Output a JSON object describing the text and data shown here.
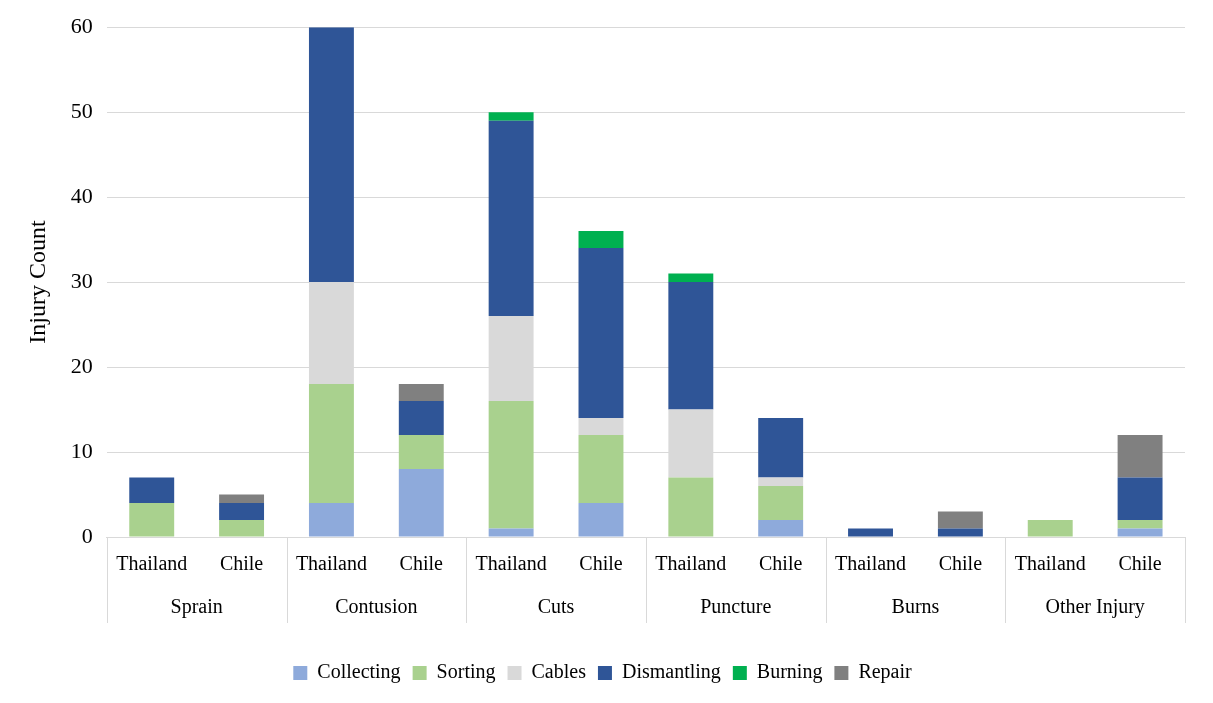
{
  "chart_data": {
    "type": "bar",
    "stacked": true,
    "ylabel": "Injury Count",
    "categories": [
      "Thailand",
      "Chile",
      "Thailand",
      "Chile",
      "Thailand",
      "Chile",
      "Thailand",
      "Chile",
      "Thailand",
      "Chile",
      "Thailand",
      "Chile"
    ],
    "annotations": [
      "Sprain",
      "Contusion",
      "Cuts",
      "Puncture",
      "Burns",
      "Other Injury"
    ],
    "series": [
      {
        "name": "Collecting",
        "color": "#8eaadb",
        "values": [
          0,
          0,
          4,
          8,
          1,
          4,
          0,
          2,
          0,
          0,
          0,
          1
        ]
      },
      {
        "name": "Sorting",
        "color": "#a9d18e",
        "values": [
          4,
          2,
          14,
          4,
          15,
          8,
          7,
          4,
          0,
          0,
          2,
          1
        ]
      },
      {
        "name": "Cables",
        "color": "#d9d9d9",
        "values": [
          0,
          0,
          12,
          0,
          10,
          2,
          8,
          1,
          0,
          0,
          0,
          0
        ]
      },
      {
        "name": "Dismantling",
        "color": "#2f5597",
        "values": [
          3,
          2,
          30,
          4,
          23,
          20,
          15,
          7,
          1,
          1,
          0,
          5
        ]
      },
      {
        "name": "Burning",
        "color": "#00b050",
        "values": [
          0,
          0,
          0,
          0,
          1,
          2,
          1,
          0,
          0,
          0,
          0,
          0
        ]
      },
      {
        "name": "Repair",
        "color": "#808080",
        "values": [
          0,
          1,
          0,
          2,
          0,
          0,
          0,
          0,
          0,
          2,
          0,
          5
        ]
      }
    ],
    "ylim": [
      0,
      60
    ],
    "yticks": [
      0,
      10,
      20,
      30,
      40,
      50,
      60
    ],
    "grid": "y",
    "legend": "bottom"
  }
}
